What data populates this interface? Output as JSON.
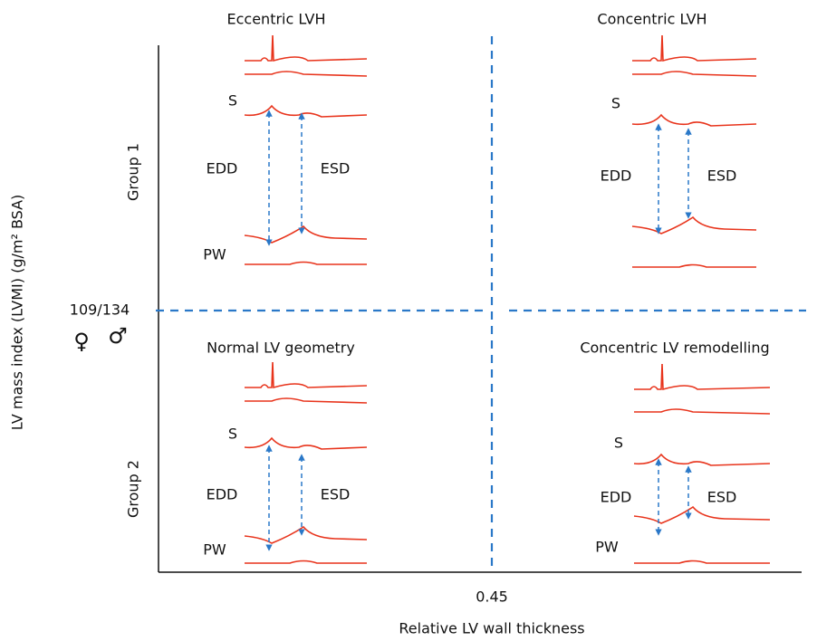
{
  "axes": {
    "x_label": "Relative LV wall thickness",
    "x_threshold": "0.45",
    "y_label": "LV mass index (LVMI) (g/m² BSA)",
    "y_threshold": "109/134",
    "female": "♀",
    "male": "♂"
  },
  "groups": [
    "Group 1",
    "Group 2"
  ],
  "quadrants": [
    {
      "title": "Eccentric LVH",
      "labels": {
        "s": "S",
        "edd": "EDD",
        "esd": "ESD",
        "pw": "PW"
      }
    },
    {
      "title": "Concentric LVH",
      "labels": {
        "s": "S",
        "edd": "EDD",
        "esd": "ESD"
      }
    },
    {
      "title": "Normal LV geometry",
      "labels": {
        "s": "S",
        "edd": "EDD",
        "esd": "ESD",
        "pw": "PW"
      }
    },
    {
      "title": "Concentric LV remodelling",
      "labels": {
        "s": "S",
        "edd": "EDD",
        "esd": "ESD",
        "pw": "PW"
      }
    }
  ]
}
